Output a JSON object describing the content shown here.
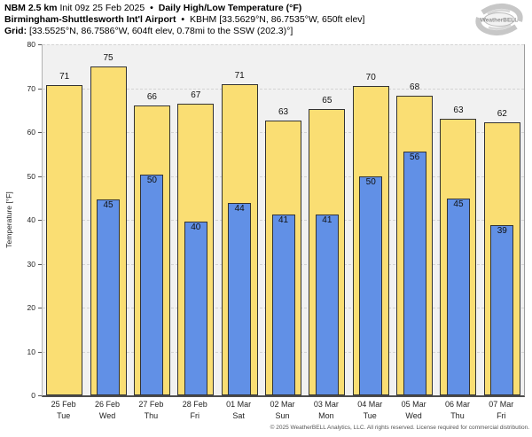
{
  "header": {
    "model": "NBM 2.5 km",
    "init": "Init 09z 25 Feb 2025",
    "bullet": "•",
    "product": "Daily High/Low Temperature (°F)",
    "station": "Birmingham-Shuttlesworth Int'l Airport",
    "station_details": "KBHM [33.5629°N, 86.7535°W, 650ft elev]",
    "grid_label": "Grid:",
    "grid_details": "[33.5525°N, 86.7586°W, 604ft elev, 0.78mi to the SSW (202.3)°]"
  },
  "logo": {
    "brand": "WeatherBELL"
  },
  "chart_data": {
    "type": "bar",
    "title": "Daily High/Low Temperature (°F)",
    "ylabel": "Temperature [°F]",
    "ylim": [
      0,
      80
    ],
    "yticks": [
      0,
      10,
      20,
      30,
      40,
      50,
      60,
      70,
      80
    ],
    "grid": "dashed horizontal gridlines, light gray plot background",
    "legend": "none",
    "categories": [
      {
        "date": "25 Feb",
        "day": "Tue"
      },
      {
        "date": "26 Feb",
        "day": "Wed"
      },
      {
        "date": "27 Feb",
        "day": "Thu"
      },
      {
        "date": "28 Feb",
        "day": "Fri"
      },
      {
        "date": "01 Mar",
        "day": "Sat"
      },
      {
        "date": "02 Mar",
        "day": "Sun"
      },
      {
        "date": "03 Mar",
        "day": "Mon"
      },
      {
        "date": "04 Mar",
        "day": "Tue"
      },
      {
        "date": "05 Mar",
        "day": "Wed"
      },
      {
        "date": "06 Mar",
        "day": "Thu"
      },
      {
        "date": "07 Mar",
        "day": "Fri"
      }
    ],
    "series": [
      {
        "name": "Daily High",
        "color": "#FADE73",
        "values": [
          71,
          75,
          66,
          67,
          71,
          63,
          65,
          70,
          68,
          63,
          62
        ],
        "heights": [
          70.7,
          74.9,
          66.1,
          66.5,
          71.0,
          62.6,
          65.3,
          70.5,
          68.3,
          63.0,
          62.3
        ]
      },
      {
        "name": "Daily Low",
        "color": "#6190E6",
        "values": [
          null,
          45,
          50,
          40,
          44,
          41,
          41,
          50,
          56,
          45,
          39
        ],
        "heights": [
          null,
          44.6,
          50.3,
          39.5,
          43.9,
          41.2,
          41.3,
          49.8,
          55.6,
          44.9,
          38.8
        ]
      }
    ]
  },
  "footer": {
    "copyright": "© 2025 WeatherBELL Analytics, LLC. All rights reserved. License required for commercial distribution."
  }
}
